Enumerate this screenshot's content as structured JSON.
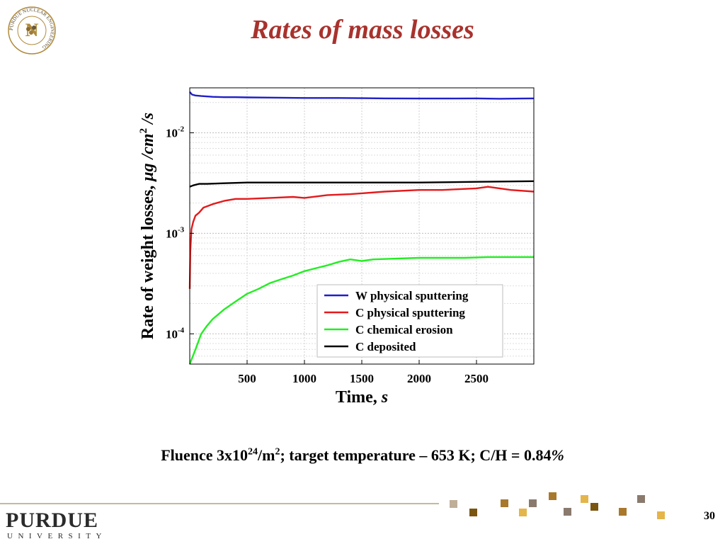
{
  "slide": {
    "title": "Rates of mass losses",
    "caption": {
      "prefix": "Fluence 3x10",
      "sup1": "24",
      "mid": "/m",
      "sup2": "2",
      "suffix": "; target temperature – 653 K; C/H = 0.84",
      "percent": "%"
    },
    "page_number": "30"
  },
  "logos": {
    "seal_text": "PURDUE NUCLEAR ENGINEERING",
    "seal_letter": "N",
    "footer_name": "PURDUE",
    "footer_sub": "UNIVERSITY"
  },
  "colors": {
    "title": "#a8322d",
    "gold": "#b08a3a",
    "w_series": "#1f1fc8",
    "c_phys_series": "#e31a1c",
    "c_chem_series": "#22ee22",
    "c_dep_series": "#000000"
  },
  "chart_data": {
    "type": "line",
    "title": "",
    "xlabel": "Time, s",
    "xlabel_main": "Time, ",
    "xlabel_unit": "s",
    "ylabel": "Rate of weight losses, μg /cm2 /s",
    "ylabel_main": "Rate of weight losses, ",
    "ylabel_mu": "μ",
    "ylabel_unit1": "g /cm",
    "ylabel_sup": "2",
    "ylabel_unit2": " /s",
    "y_scale": "log",
    "xlim": [
      0,
      3000
    ],
    "ylim": [
      5e-05,
      0.028
    ],
    "x_ticks": [
      500,
      1000,
      1500,
      2000,
      2500
    ],
    "x_tick_labels": [
      "500",
      "1000",
      "1500",
      "2000",
      "2500"
    ],
    "y_ticks": [
      {
        "value": 0.01,
        "base": "10",
        "exp": "-2"
      },
      {
        "value": 0.001,
        "base": "10",
        "exp": "-3"
      },
      {
        "value": 0.0001,
        "base": "10",
        "exp": "-4"
      }
    ],
    "grid": true,
    "legend_position": "bottom-right",
    "series": [
      {
        "name": "W physical sputtering",
        "color": "#1f1fc8",
        "x": [
          0,
          20,
          50,
          100,
          200,
          300,
          400,
          500,
          700,
          1000,
          1300,
          1500,
          1700,
          2000,
          2300,
          2500,
          2700,
          2900,
          3000
        ],
        "y": [
          0.0255,
          0.024,
          0.0235,
          0.0232,
          0.0228,
          0.0226,
          0.0226,
          0.0225,
          0.0224,
          0.0222,
          0.0222,
          0.0221,
          0.022,
          0.0219,
          0.0219,
          0.022,
          0.0218,
          0.0219,
          0.022
        ]
      },
      {
        "name": "C physical sputtering",
        "color": "#e31a1c",
        "x": [
          0,
          5,
          15,
          30,
          50,
          80,
          120,
          200,
          300,
          400,
          500,
          700,
          900,
          1000,
          1200,
          1400,
          1500,
          1700,
          2000,
          2200,
          2500,
          2600,
          2800,
          3000
        ],
        "y": [
          0.00028,
          0.00065,
          0.0011,
          0.0013,
          0.0015,
          0.0016,
          0.0018,
          0.00195,
          0.0021,
          0.0022,
          0.0022,
          0.00225,
          0.0023,
          0.00225,
          0.0024,
          0.00245,
          0.0025,
          0.0026,
          0.0027,
          0.0027,
          0.0028,
          0.0029,
          0.0027,
          0.0026
        ]
      },
      {
        "name": "C chemical erosion",
        "color": "#22ee22",
        "x": [
          0,
          50,
          100,
          150,
          200,
          300,
          400,
          500,
          600,
          700,
          800,
          900,
          1000,
          1100,
          1200,
          1300,
          1400,
          1500,
          1600,
          1800,
          2000,
          2200,
          2400,
          2600,
          2800,
          3000
        ],
        "y": [
          5e-05,
          7e-05,
          0.0001,
          0.00012,
          0.00014,
          0.000175,
          0.00021,
          0.00025,
          0.00028,
          0.00032,
          0.00035,
          0.00038,
          0.00042,
          0.00045,
          0.00048,
          0.00052,
          0.00055,
          0.00053,
          0.00055,
          0.00056,
          0.00057,
          0.00057,
          0.00057,
          0.00058,
          0.00058,
          0.00058
        ]
      },
      {
        "name": "C deposited",
        "color": "#000000",
        "x": [
          0,
          30,
          80,
          150,
          300,
          500,
          800,
          1000,
          1500,
          2000,
          2500,
          3000
        ],
        "y": [
          0.0029,
          0.003,
          0.0031,
          0.0031,
          0.00315,
          0.0032,
          0.0032,
          0.0032,
          0.0032,
          0.0032,
          0.00325,
          0.0033
        ]
      }
    ]
  }
}
